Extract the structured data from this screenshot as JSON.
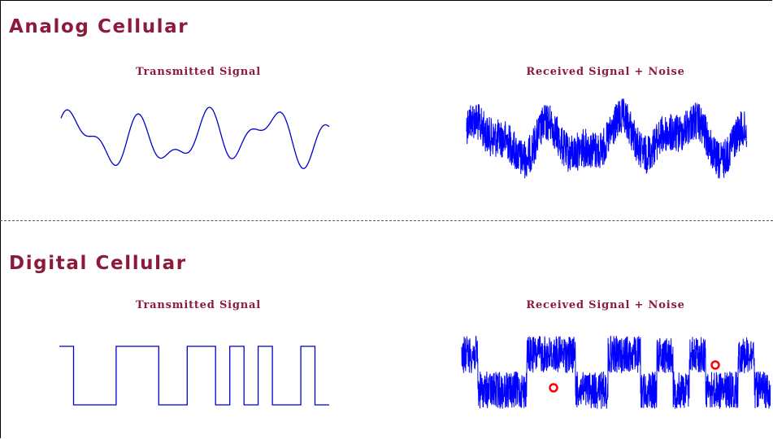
{
  "colors": {
    "heading": "#8b1a3b",
    "signal": "#0000cc",
    "noise_signal": "#0000ff",
    "error_marker": "#ff0000"
  },
  "analog": {
    "title": "Analog Cellular",
    "transmitted_title": "Transmitted Signal",
    "received_title": "Received Signal + Noise"
  },
  "digital": {
    "title": "Digital Cellular",
    "transmitted_title": "Transmitted Signal",
    "received_title": "Received Signal + Noise",
    "bits": [
      1,
      0,
      0,
      0,
      1,
      1,
      1,
      0,
      0,
      1,
      1,
      0,
      1,
      0,
      1,
      0,
      0,
      1,
      0
    ],
    "error_markers": 2
  }
}
